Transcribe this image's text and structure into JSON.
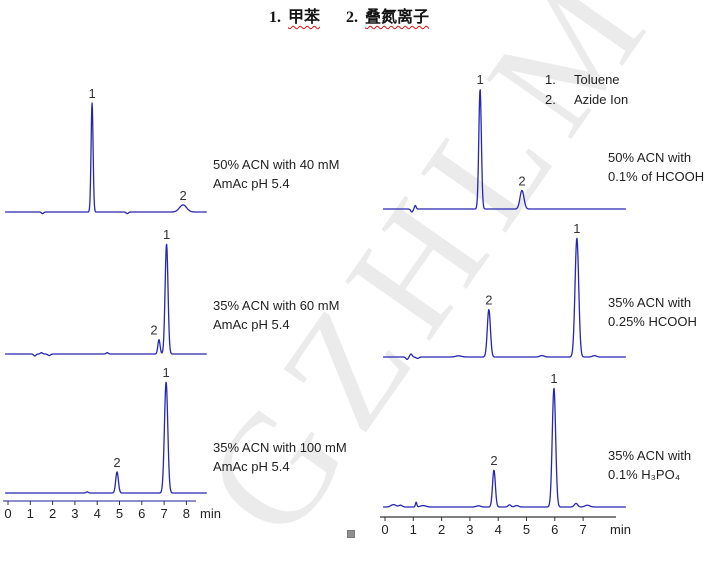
{
  "figure_title": {
    "parts": [
      {
        "text": "1.",
        "underlined": false
      },
      {
        "text": "甲苯",
        "underlined": true
      },
      {
        "text": "2.",
        "underlined": false
      },
      {
        "text": "叠氮离子",
        "underlined": true
      }
    ]
  },
  "watermark_text": "GZHLM",
  "legend": {
    "items": [
      {
        "num": "1.",
        "label": "Toluene"
      },
      {
        "num": "2.",
        "label": "Azide Ion"
      }
    ]
  },
  "colors": {
    "trace": "#2626b2",
    "axis_line_left": "#6a6abf",
    "axis_line_right": "#555555",
    "tick_color": "#333333",
    "title_underline": "#dd1111",
    "watermark": "#dcdcdc"
  },
  "chart_data": {
    "type": "line",
    "figure_kind": "HPLC chromatograms comparing mobile phases",
    "x_unit": "min",
    "peak_identities": {
      "1": "Toluene (甲苯)",
      "2": "Azide Ion (叠氮离子)"
    },
    "columns": {
      "left": {
        "axis_ticks": [
          0,
          1,
          2,
          3,
          4,
          5,
          6,
          7,
          8
        ],
        "axis_unit": "min"
      },
      "right": {
        "axis_ticks": [
          0,
          1,
          2,
          3,
          4,
          5,
          6,
          7
        ],
        "axis_unit": "min"
      }
    },
    "panels": [
      {
        "id": "left-top",
        "column": "left",
        "condition": [
          "50% ACN with 40 mM",
          "AmAc pH 5.4"
        ],
        "peaks": [
          {
            "label": "1",
            "rt_min": 3.77,
            "rel_height": 1.0,
            "sigma_min": 0.045
          },
          {
            "label": "2",
            "rt_min": 7.85,
            "rel_height": 0.065,
            "sigma_min": 0.16
          }
        ],
        "baseline_blips": [
          {
            "rt_min": 1.55,
            "rel_height": -0.015,
            "sigma_min": 0.05
          },
          {
            "rt_min": 5.35,
            "rel_height": -0.015,
            "sigma_min": 0.05
          }
        ]
      },
      {
        "id": "left-middle",
        "column": "left",
        "condition": [
          "35% ACN with 60 mM",
          "AmAc pH 5.4"
        ],
        "peaks": [
          {
            "label": "2",
            "rt_min": 6.77,
            "rel_height": 0.13,
            "sigma_min": 0.05,
            "label_dx": -5
          },
          {
            "label": "1",
            "rt_min": 7.11,
            "rel_height": 1.0,
            "sigma_min": 0.065
          }
        ],
        "baseline_blips": [
          {
            "rt_min": 1.2,
            "rel_height": -0.018,
            "sigma_min": 0.05
          },
          {
            "rt_min": 1.5,
            "rel_height": 0.012,
            "sigma_min": 0.05
          },
          {
            "rt_min": 1.85,
            "rel_height": -0.014,
            "sigma_min": 0.06
          },
          {
            "rt_min": 4.45,
            "rel_height": 0.012,
            "sigma_min": 0.05
          }
        ]
      },
      {
        "id": "left-bottom",
        "column": "left",
        "condition": [
          "35% ACN with 100 mM",
          "AmAc pH 5.4"
        ],
        "peaks": [
          {
            "label": "2",
            "rt_min": 4.89,
            "rel_height": 0.19,
            "sigma_min": 0.06
          },
          {
            "label": "1",
            "rt_min": 7.09,
            "rel_height": 1.0,
            "sigma_min": 0.075
          }
        ],
        "baseline_blips": [
          {
            "rt_min": 3.55,
            "rel_height": 0.01,
            "sigma_min": 0.05
          }
        ]
      },
      {
        "id": "right-top",
        "column": "right",
        "condition": [
          "50% ACN with",
          "0.1% of HCOOH"
        ],
        "peaks": [
          {
            "label": "1",
            "rt_min": 3.36,
            "rel_height": 1.0,
            "sigma_min": 0.045
          },
          {
            "label": "2",
            "rt_min": 4.84,
            "rel_height": 0.155,
            "sigma_min": 0.07
          }
        ],
        "baseline_blips": [
          {
            "rt_min": 0.95,
            "rel_height": -0.025,
            "sigma_min": 0.04
          },
          {
            "rt_min": 1.07,
            "rel_height": 0.03,
            "sigma_min": 0.03
          }
        ]
      },
      {
        "id": "right-middle",
        "column": "right",
        "condition": [
          "35% ACN with",
          "0.25% HCOOH"
        ],
        "peaks": [
          {
            "label": "2",
            "rt_min": 3.67,
            "rel_height": 0.4,
            "sigma_min": 0.055
          },
          {
            "label": "1",
            "rt_min": 6.78,
            "rel_height": 1.0,
            "sigma_min": 0.065
          }
        ],
        "baseline_blips": [
          {
            "rt_min": 0.78,
            "rel_height": -0.02,
            "sigma_min": 0.04
          },
          {
            "rt_min": 0.92,
            "rel_height": 0.025,
            "sigma_min": 0.04
          },
          {
            "rt_min": 1.15,
            "rel_height": -0.012,
            "sigma_min": 0.05
          },
          {
            "rt_min": 2.6,
            "rel_height": 0.01,
            "sigma_min": 0.1
          },
          {
            "rt_min": 5.55,
            "rel_height": 0.012,
            "sigma_min": 0.08
          },
          {
            "rt_min": 7.4,
            "rel_height": 0.012,
            "sigma_min": 0.07
          }
        ]
      },
      {
        "id": "right-bottom",
        "column": "right",
        "condition": [
          "35% ACN with",
          "0.1% H₃PO₄"
        ],
        "peaks": [
          {
            "label": "2",
            "rt_min": 3.85,
            "rel_height": 0.31,
            "sigma_min": 0.05
          },
          {
            "label": "1",
            "rt_min": 5.97,
            "rel_height": 1.0,
            "sigma_min": 0.06
          }
        ],
        "baseline_blips": [
          {
            "rt_min": 0.3,
            "rel_height": 0.02,
            "sigma_min": 0.09
          },
          {
            "rt_min": 0.55,
            "rel_height": 0.015,
            "sigma_min": 0.06
          },
          {
            "rt_min": 1.1,
            "rel_height": 0.04,
            "sigma_min": 0.025
          },
          {
            "rt_min": 1.35,
            "rel_height": 0.012,
            "sigma_min": 0.1
          },
          {
            "rt_min": 3.3,
            "rel_height": 0.01,
            "sigma_min": 0.08
          },
          {
            "rt_min": 4.4,
            "rel_height": 0.018,
            "sigma_min": 0.05
          },
          {
            "rt_min": 4.65,
            "rel_height": 0.012,
            "sigma_min": 0.07
          },
          {
            "rt_min": 6.75,
            "rel_height": 0.03,
            "sigma_min": 0.06
          },
          {
            "rt_min": 7.15,
            "rel_height": 0.015,
            "sigma_min": 0.09
          }
        ]
      }
    ]
  }
}
